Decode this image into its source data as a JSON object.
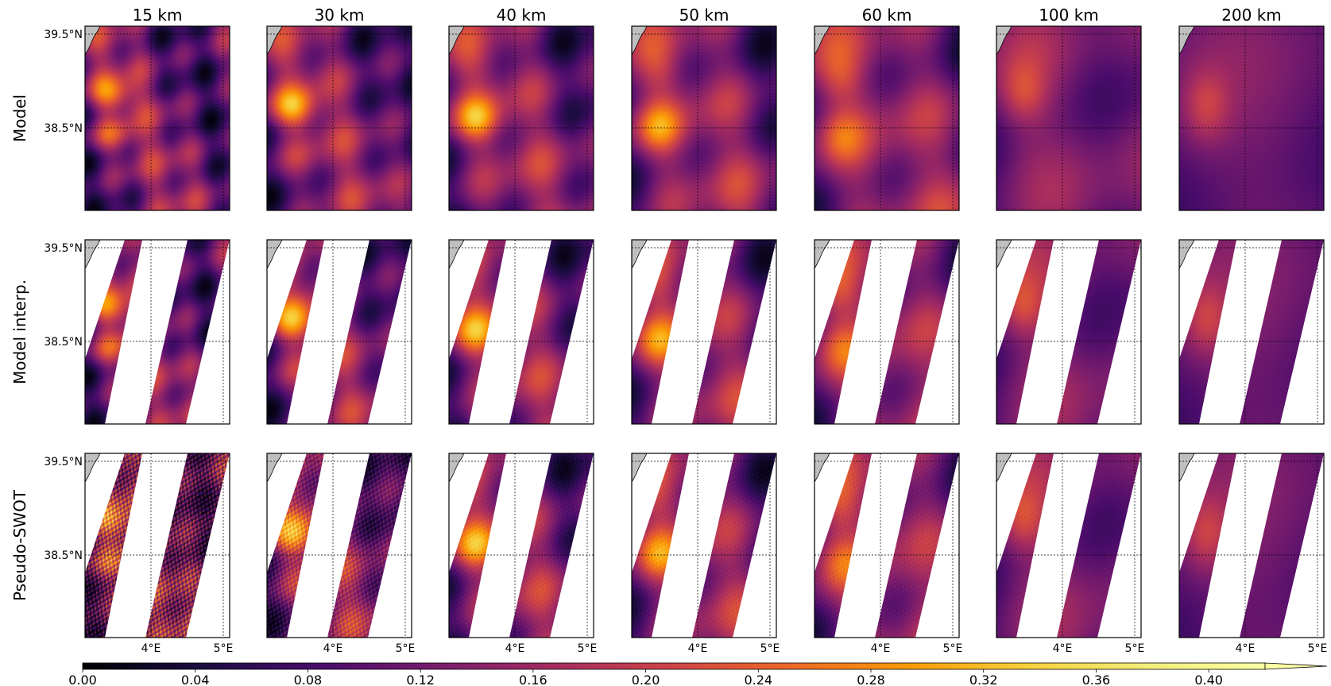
{
  "columns": [
    "15 km",
    "30 km",
    "40 km",
    "50 km",
    "60 km",
    "100 km",
    "200 km"
  ],
  "rows": [
    "Model",
    "Model interp.",
    "Pseudo-SWOT"
  ],
  "lat_ticks": [
    "39.5°N",
    "38.5°N"
  ],
  "lon_ticks": [
    "4°E",
    "5°E"
  ],
  "colorbar": {
    "min": 0.0,
    "max": 0.42,
    "ticks": [
      "0.00",
      "0.04",
      "0.08",
      "0.12",
      "0.16",
      "0.20",
      "0.24",
      "0.28",
      "0.32",
      "0.36",
      "0.40"
    ],
    "extend": "max",
    "colormap": "inferno"
  },
  "colors": {
    "land": "#bfbfbf",
    "gap": "#ffffff",
    "frame": "#000000"
  }
}
